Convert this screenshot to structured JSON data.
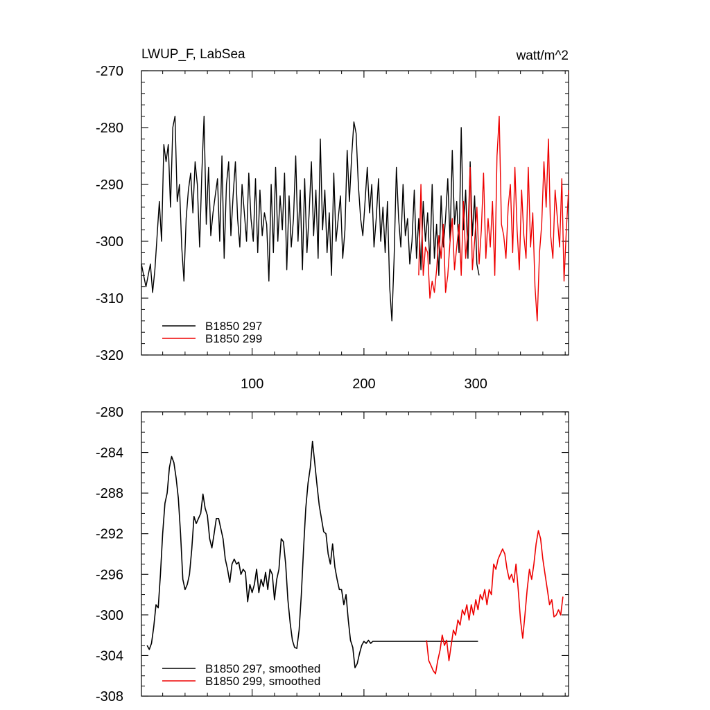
{
  "chart_data": [
    {
      "type": "line",
      "title_left": "LWUP_F, LabSea",
      "title_right": "watt/m^2",
      "xlim": [
        1,
        383
      ],
      "ylim": [
        -320,
        -270
      ],
      "yticks": [
        -270,
        -280,
        -290,
        -300,
        -310,
        -320
      ],
      "ytick_labels": [
        "-270",
        "-280",
        "-290",
        "-300",
        "-310",
        "-320"
      ],
      "xticks": [
        100,
        200,
        300
      ],
      "xtick_labels": [
        "100",
        "200",
        "300"
      ],
      "legend_position": "bottom-left",
      "series": [
        {
          "name": "B1850 297",
          "color": "#000000",
          "x": [
            1,
            3,
            5,
            7,
            9,
            11,
            13,
            15,
            17,
            19,
            21,
            23,
            25,
            27,
            29,
            31,
            33,
            35,
            37,
            39,
            41,
            43,
            45,
            47,
            49,
            51,
            53,
            55,
            57,
            59,
            61,
            63,
            65,
            67,
            69,
            71,
            73,
            75,
            77,
            79,
            81,
            83,
            85,
            87,
            89,
            91,
            93,
            95,
            97,
            99,
            101,
            103,
            105,
            107,
            109,
            111,
            113,
            115,
            117,
            119,
            121,
            123,
            125,
            127,
            129,
            131,
            133,
            135,
            137,
            139,
            141,
            143,
            145,
            147,
            149,
            151,
            153,
            155,
            157,
            159,
            161,
            163,
            165,
            167,
            169,
            171,
            173,
            175,
            177,
            179,
            181,
            183,
            185,
            187,
            189,
            191,
            193,
            195,
            197,
            199,
            201,
            203,
            205,
            207,
            209,
            211,
            213,
            215,
            217,
            219,
            221,
            223,
            225,
            227,
            229,
            231,
            233,
            235,
            237,
            239,
            241,
            243,
            245,
            247,
            249,
            251,
            253,
            255,
            257,
            259,
            261,
            263,
            265,
            267,
            269,
            271,
            273,
            275,
            277,
            279,
            281,
            283,
            285,
            287,
            289,
            291,
            293,
            295,
            297,
            299,
            301,
            303
          ],
          "values": [
            -304,
            -306,
            -308,
            -306,
            -304,
            -309,
            -305,
            -299,
            -293,
            -300,
            -283,
            -286,
            -283,
            -294,
            -280,
            -278,
            -293,
            -290,
            -301,
            -307,
            -296,
            -291,
            -288,
            -295,
            -286,
            -290,
            -301,
            -288,
            -278,
            -297,
            -287,
            -299,
            -295,
            -292,
            -289,
            -300,
            -285,
            -303,
            -290,
            -286,
            -299,
            -292,
            -286,
            -296,
            -301,
            -290,
            -295,
            -300,
            -288,
            -296,
            -300,
            -289,
            -302,
            -291,
            -299,
            -295,
            -297,
            -307,
            -290,
            -302,
            -287,
            -300,
            -292,
            -298,
            -288,
            -305,
            -292,
            -301,
            -296,
            -285,
            -300,
            -291,
            -305,
            -289,
            -302,
            -295,
            -286,
            -299,
            -291,
            -303,
            -282,
            -298,
            -291,
            -302,
            -295,
            -306,
            -288,
            -300,
            -296,
            -292,
            -303,
            -298,
            -284,
            -293,
            -285,
            -279,
            -281,
            -290,
            -296,
            -299,
            -293,
            -287,
            -295,
            -290,
            -301,
            -296,
            -289,
            -300,
            -294,
            -302,
            -293,
            -308,
            -314,
            -303,
            -287,
            -296,
            -301,
            -290,
            -299,
            -296,
            -304,
            -300,
            -291,
            -303,
            -296,
            -305,
            -293,
            -300,
            -295,
            -304,
            -290,
            -303,
            -297,
            -306,
            -292,
            -301,
            -296,
            -289,
            -300,
            -284,
            -297,
            -293,
            -302,
            -280,
            -298,
            -291,
            -303,
            -286,
            -299,
            -292,
            -304,
            -306
          ],
          "line_width": 1.4
        },
        {
          "name": "B1850 299",
          "color": "#ee0000",
          "x": [
            249,
            251,
            253,
            255,
            257,
            259,
            261,
            263,
            265,
            267,
            269,
            271,
            273,
            275,
            277,
            279,
            281,
            283,
            285,
            287,
            289,
            291,
            293,
            295,
            297,
            299,
            301,
            303,
            305,
            307,
            309,
            311,
            313,
            315,
            317,
            319,
            321,
            323,
            325,
            327,
            329,
            331,
            333,
            335,
            337,
            339,
            341,
            343,
            345,
            347,
            349,
            351,
            353,
            355,
            357,
            359,
            361,
            363,
            365,
            367,
            369,
            371,
            373,
            375,
            377,
            379,
            381,
            383
          ],
          "values": [
            -306,
            -290,
            -306,
            -301,
            -302,
            -310,
            -307,
            -309,
            -305,
            -299,
            -303,
            -297,
            -309,
            -306,
            -300,
            -296,
            -305,
            -301,
            -297,
            -306,
            -293,
            -303,
            -298,
            -287,
            -305,
            -300,
            -294,
            -304,
            -298,
            -288,
            -303,
            -296,
            -301,
            -293,
            -306,
            -285,
            -278,
            -297,
            -299,
            -303,
            -294,
            -290,
            -302,
            -287,
            -298,
            -305,
            -291,
            -299,
            -303,
            -287,
            -301,
            -295,
            -308,
            -314,
            -302,
            -297,
            -286,
            -294,
            -282,
            -299,
            -303,
            -291,
            -296,
            -301,
            -289,
            -307,
            -298,
            -291
          ],
          "line_width": 1.4
        }
      ]
    },
    {
      "type": "line",
      "xlim": [
        1,
        383
      ],
      "ylim": [
        -308,
        -280
      ],
      "yticks": [
        -280,
        -284,
        -288,
        -292,
        -296,
        -300,
        -304,
        -308
      ],
      "ytick_labels": [
        "-280",
        "-284",
        "-288",
        "-292",
        "-296",
        "-300",
        "-304",
        "-308"
      ],
      "xticks": [
        100,
        200,
        300
      ],
      "legend_position": "bottom-left",
      "series": [
        {
          "name": "B1850 297, smoothed",
          "color": "#000000",
          "x": [
            6,
            8,
            10,
            12,
            14,
            16,
            18,
            20,
            22,
            24,
            26,
            28,
            30,
            32,
            34,
            36,
            38,
            40,
            42,
            44,
            46,
            48,
            50,
            52,
            54,
            56,
            58,
            60,
            62,
            64,
            66,
            68,
            70,
            72,
            74,
            76,
            78,
            80,
            82,
            84,
            86,
            88,
            90,
            92,
            94,
            96,
            98,
            100,
            102,
            104,
            106,
            108,
            110,
            112,
            114,
            116,
            118,
            120,
            122,
            124,
            126,
            128,
            130,
            132,
            134,
            136,
            138,
            140,
            142,
            144,
            146,
            148,
            150,
            152,
            154,
            156,
            158,
            160,
            162,
            164,
            166,
            168,
            170,
            172,
            174,
            176,
            178,
            180,
            182,
            184,
            186,
            188,
            190,
            192,
            194,
            196,
            198,
            200,
            202,
            204,
            206,
            208,
            210,
            212,
            214,
            216,
            218,
            220,
            222,
            224,
            226,
            228,
            230,
            232,
            234,
            236,
            238,
            240,
            242,
            244,
            246,
            248,
            250,
            252,
            254,
            256,
            258,
            260,
            262,
            264,
            266,
            268,
            270,
            272,
            274,
            276,
            278,
            280,
            282,
            284,
            286,
            288,
            290,
            292,
            294,
            296,
            298,
            300,
            302
          ],
          "values": [
            -303,
            -303.4,
            -302.8,
            -301.2,
            -299,
            -299.3,
            -296,
            -292,
            -289,
            -288,
            -285.5,
            -284.4,
            -285,
            -286.5,
            -288.5,
            -292,
            -296.5,
            -297.5,
            -297,
            -296,
            -293.5,
            -290.3,
            -291,
            -290.5,
            -290,
            -288.1,
            -289.5,
            -290.2,
            -292.5,
            -293.4,
            -292,
            -290.5,
            -290.5,
            -291.5,
            -292.5,
            -294.5,
            -295.5,
            -296.8,
            -295,
            -294.5,
            -295,
            -294.8,
            -296,
            -295.5,
            -295.8,
            -298.7,
            -297,
            -297.8,
            -297,
            -295.5,
            -297.8,
            -296.5,
            -297.2,
            -295.8,
            -297.5,
            -295.5,
            -296,
            -298.5,
            -296.5,
            -295.5,
            -292.5,
            -292.8,
            -295,
            -298.5,
            -300.8,
            -302.5,
            -303.2,
            -303.3,
            -301.5,
            -298,
            -293.5,
            -289.5,
            -287,
            -285.5,
            -282.9,
            -285,
            -287.2,
            -289.2,
            -290.5,
            -291.8,
            -292,
            -294,
            -295,
            -293,
            -295.3,
            -296.5,
            -297.5,
            -297.5,
            -299,
            -298,
            -300.5,
            -302.5,
            -303.2,
            -305.2,
            -304.8,
            -303.8,
            -303,
            -302.6,
            -302.8,
            -302.5,
            -302.8,
            -302.6,
            -302.6,
            -302.6,
            -302.6,
            -302.6,
            -302.6,
            -302.6,
            -302.6,
            -302.6,
            -302.6,
            -302.6,
            -302.6,
            -302.6,
            -302.6,
            -302.6,
            -302.6,
            -302.6,
            -302.6,
            -302.6,
            -302.6,
            -302.6,
            -302.6,
            -302.6,
            -302.6,
            -302.6,
            -302.6,
            -302.6,
            -302.6,
            -302.6,
            -302.6,
            -302.6,
            -302.6,
            -302.6,
            -302.6,
            -302.6,
            -302.6,
            -302.6,
            -302.6,
            -302.6,
            -302.6,
            -302.6,
            -302.6,
            -302.6,
            -302.6,
            -302.6,
            -302.6,
            -302.6,
            -302.6
          ],
          "line_width": 1.6
        },
        {
          "name": "B1850 299, smoothed",
          "color": "#ee0000",
          "x": [
            256,
            258,
            260,
            262,
            264,
            266,
            268,
            270,
            272,
            274,
            276,
            278,
            280,
            282,
            284,
            286,
            288,
            290,
            292,
            294,
            296,
            298,
            300,
            302,
            304,
            306,
            308,
            310,
            312,
            314,
            316,
            318,
            320,
            322,
            324,
            326,
            328,
            330,
            332,
            334,
            336,
            338,
            340,
            342,
            344,
            346,
            348,
            350,
            352,
            354,
            356,
            358,
            360,
            362,
            364,
            366,
            368,
            370,
            372,
            374,
            376,
            378
          ],
          "values": [
            -302.5,
            -304.5,
            -305,
            -305.5,
            -305.8,
            -304.5,
            -303.5,
            -302,
            -303,
            -302.5,
            -304.5,
            -303,
            -301.5,
            -302,
            -300.5,
            -301,
            -299.5,
            -300,
            -299,
            -300.5,
            -299,
            -300,
            -298.5,
            -299.5,
            -298,
            -298.5,
            -297.5,
            -299,
            -297.5,
            -298,
            -295,
            -295.5,
            -294.5,
            -294,
            -293.5,
            -294,
            -295.5,
            -296.5,
            -296,
            -296.8,
            -295,
            -297.5,
            -300.5,
            -302.3,
            -300,
            -297.5,
            -295.5,
            -296.5,
            -295,
            -293,
            -291.7,
            -292.5,
            -294.5,
            -296,
            -297.5,
            -299,
            -298.5,
            -300.2,
            -300,
            -299.5,
            -300,
            -298.2
          ],
          "line_width": 1.6
        }
      ]
    }
  ]
}
